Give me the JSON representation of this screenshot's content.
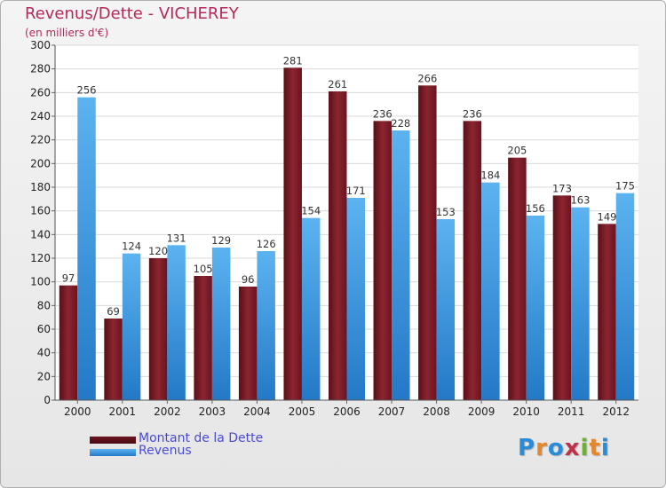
{
  "title": "Revenus/Dette - VICHEREY",
  "subtitle": "(en milliers d'€)",
  "logo": {
    "text": "Proxiti",
    "letter_colors": [
      "#2a8bd6",
      "#e8862a",
      "#2a8bd6",
      "#c0304a",
      "#6fb030",
      "#e8862a",
      "#2a8bd6"
    ]
  },
  "chart_data": {
    "type": "bar",
    "title": "Revenus/Dette - VICHEREY",
    "subtitle": "(en milliers d'€)",
    "categories": [
      "2000",
      "2001",
      "2002",
      "2003",
      "2004",
      "2005",
      "2006",
      "2007",
      "2008",
      "2009",
      "2010",
      "2011",
      "2012"
    ],
    "series": [
      {
        "name": "Montant de la Dette",
        "color": "#7b1a24",
        "values": [
          97,
          69,
          120,
          105,
          96,
          281,
          261,
          236,
          266,
          236,
          205,
          173,
          149
        ]
      },
      {
        "name": "Revenus",
        "color": "#3d9be4",
        "values": [
          256,
          124,
          131,
          129,
          126,
          154,
          171,
          228,
          153,
          184,
          156,
          163,
          175
        ]
      }
    ],
    "ylim": [
      0,
      300
    ],
    "yticks": [
      0,
      20,
      40,
      60,
      80,
      100,
      120,
      140,
      160,
      180,
      200,
      220,
      240,
      260,
      280,
      300
    ],
    "grid": true,
    "legend": "bottom-left"
  }
}
